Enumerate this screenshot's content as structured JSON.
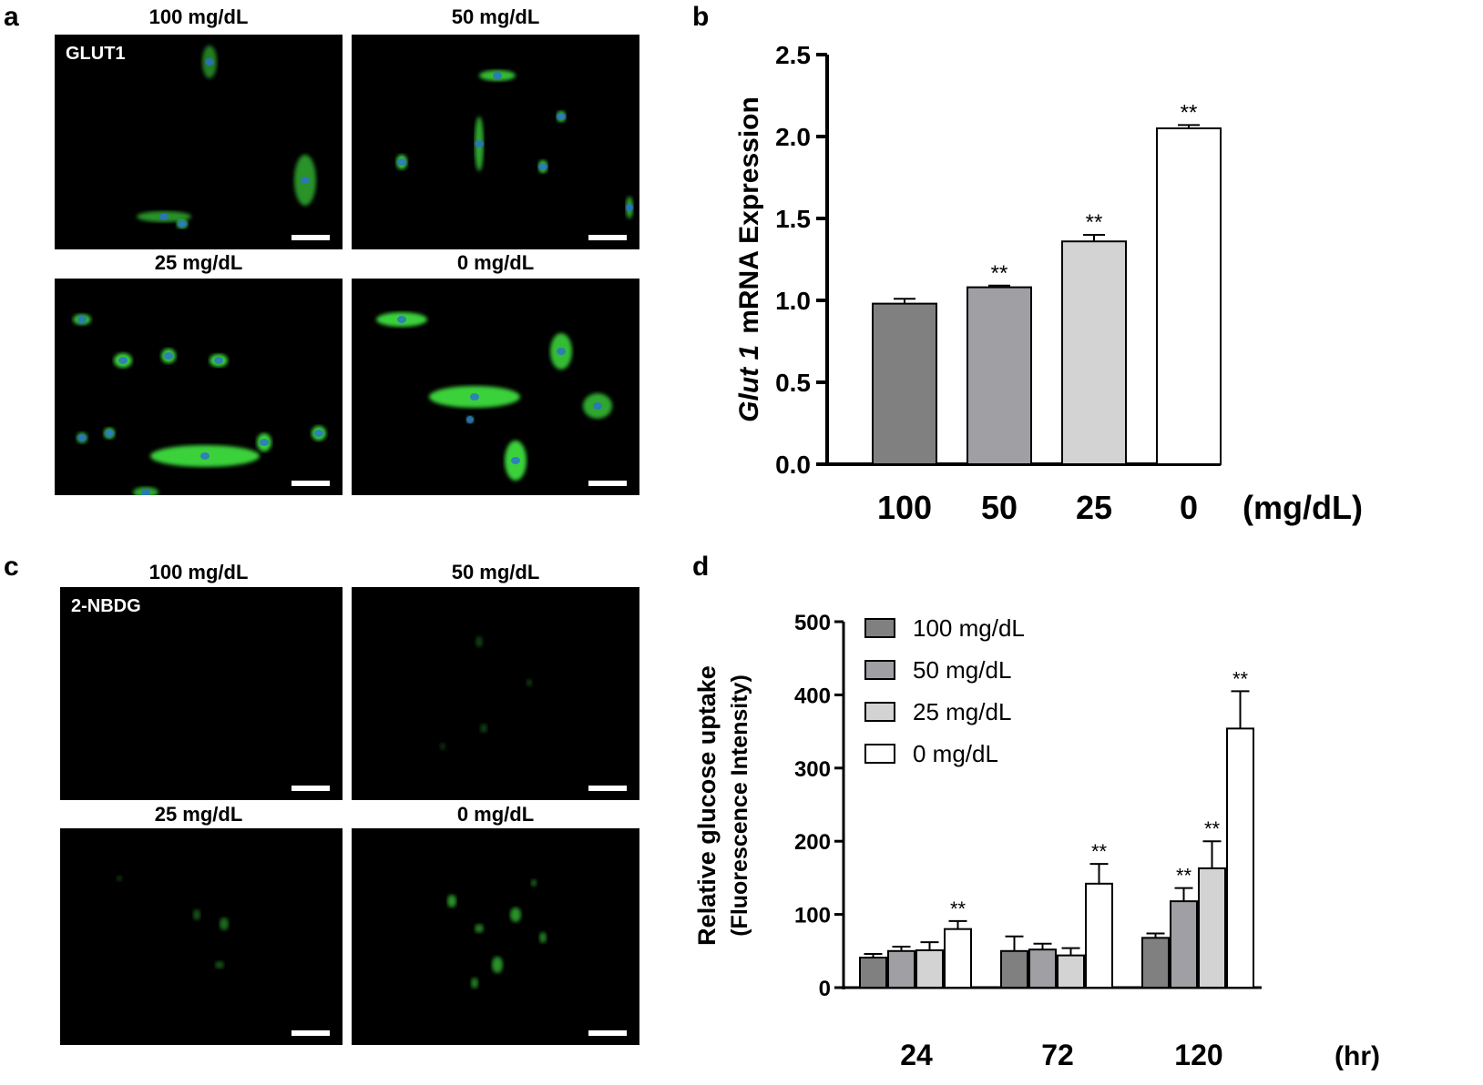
{
  "panel_letters": {
    "a": "a",
    "b": "b",
    "c": "c",
    "d": "d"
  },
  "panel_a": {
    "stain_label": "GLUT1",
    "images": [
      {
        "label": "100 mg/dL"
      },
      {
        "label": "50 mg/dL"
      },
      {
        "label": "25 mg/dL"
      },
      {
        "label": "0 mg/dL"
      }
    ]
  },
  "panel_c": {
    "stain_label": "2-NBDG",
    "images": [
      {
        "label": "100 mg/dL"
      },
      {
        "label": "50 mg/dL"
      },
      {
        "label": "25 mg/dL"
      },
      {
        "label": "0 mg/dL"
      }
    ]
  },
  "colors": {
    "c100": "#808080",
    "c50": "#a0a0a4",
    "c25": "#d3d3d3",
    "c0": "#ffffff",
    "cell_green": "#3ad13a",
    "nucleus_blue": "#2a6fd0"
  },
  "chart_data": [
    {
      "type": "bar",
      "panel": "b",
      "ylabel_italic": "Glut 1",
      "ylabel_rest": "mRNA Expression",
      "xunit": "(mg/dL)",
      "categories": [
        "100",
        "50",
        "25",
        "0"
      ],
      "values": [
        0.98,
        1.08,
        1.36,
        2.05
      ],
      "errors": [
        0.03,
        0.01,
        0.04,
        0.02
      ],
      "significance": [
        "",
        "**",
        "**",
        "**"
      ],
      "ylim": [
        0,
        2.5
      ],
      "yticks": [
        "0.0",
        "0.5",
        "1.0",
        "1.5",
        "2.0",
        "2.5"
      ],
      "grid": false
    },
    {
      "type": "bar",
      "panel": "d",
      "ylabel_line1": "Relative glucose uptake",
      "ylabel_line2": "(Fluorescence Intensity)",
      "xunit": "(hr)",
      "categories": [
        "24",
        "72",
        "120"
      ],
      "series": [
        {
          "name": "100 mg/dL",
          "values": [
            41,
            50,
            68
          ],
          "errors": [
            5,
            20,
            6
          ],
          "significance": [
            "",
            "",
            ""
          ]
        },
        {
          "name": "50 mg/dL",
          "values": [
            50,
            52,
            118
          ],
          "errors": [
            6,
            8,
            18
          ],
          "significance": [
            "",
            "",
            "**"
          ]
        },
        {
          "name": "25 mg/dL",
          "values": [
            51,
            44,
            163
          ],
          "errors": [
            11,
            10,
            37
          ],
          "significance": [
            "",
            "",
            "**"
          ]
        },
        {
          "name": "0 mg/dL",
          "values": [
            80,
            142,
            354
          ],
          "errors": [
            11,
            27,
            51
          ],
          "significance": [
            "**",
            "**",
            "**"
          ]
        }
      ],
      "ylim": [
        0,
        500
      ],
      "yticks": [
        "0",
        "100",
        "200",
        "300",
        "400",
        "500"
      ],
      "legend": "top-left",
      "grid": false
    }
  ]
}
